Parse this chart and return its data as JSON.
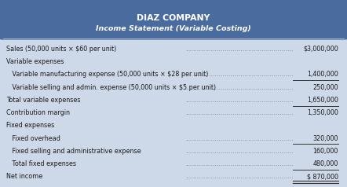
{
  "title1": "DIAZ COMPANY",
  "title2": "Income Statement (Variable Costing)",
  "header_bg": "#4a6b9d",
  "header_text_color": "#ffffff",
  "body_bg": "#cdd8e8",
  "text_color": "#1a1a1a",
  "border_color": "#a0b4cc",
  "line_color": "#333333",
  "rows": [
    {
      "label": "Sales (50,000 units × $60 per unit)",
      "dots": true,
      "value": "$3,000,000",
      "indent": 0,
      "single_above": false,
      "double_below": false
    },
    {
      "label": "Variable expenses",
      "dots": false,
      "value": "",
      "indent": 0,
      "single_above": false,
      "double_below": false
    },
    {
      "label": "   Variable manufacturing expense (50,000 units × $28 per unit)",
      "dots": true,
      "value": "1,400,000",
      "indent": 0,
      "single_above": false,
      "double_below": false
    },
    {
      "label": "   Variable selling and admin. expense (50,000 units × $5 per unit)",
      "dots": true,
      "value": "250,000",
      "indent": 0,
      "single_above": true,
      "double_below": false
    },
    {
      "label": "Total variable expenses",
      "dots": true,
      "value": "1,650,000",
      "indent": 0,
      "single_above": false,
      "double_below": false
    },
    {
      "label": "Contribution margin",
      "dots": true,
      "value": "1,350,000",
      "indent": 0,
      "single_above": true,
      "double_below": false
    },
    {
      "label": "Fixed expenses",
      "dots": false,
      "value": "",
      "indent": 0,
      "single_above": false,
      "double_below": false
    },
    {
      "label": "   Fixed overhead",
      "dots": true,
      "value": "320,000",
      "indent": 0,
      "single_above": false,
      "double_below": false
    },
    {
      "label": "   Fixed selling and administrative expense",
      "dots": true,
      "value": "160,000",
      "indent": 0,
      "single_above": true,
      "double_below": false
    },
    {
      "label": "   Total fixed expenses",
      "dots": true,
      "value": "480,000",
      "indent": 0,
      "single_above": false,
      "double_below": false
    },
    {
      "label": "Net income",
      "dots": true,
      "value": "$ 870,000",
      "indent": 0,
      "single_above": true,
      "double_below": true
    }
  ],
  "figwidth": 4.42,
  "figheight": 2.38,
  "dpi": 100
}
